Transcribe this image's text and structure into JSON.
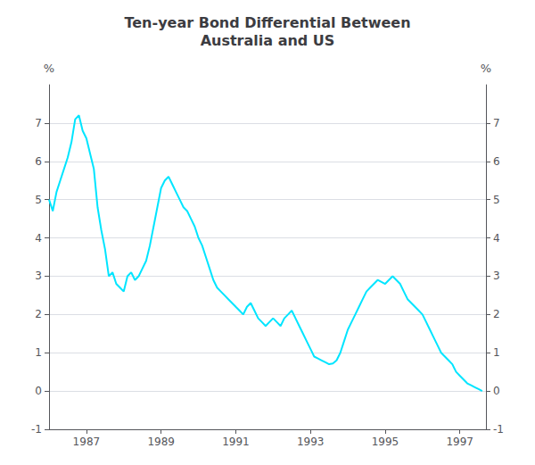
{
  "chart_data": {
    "type": "line",
    "title": "Ten-year Bond Differential Between\nAustralia and US",
    "ylabel": "%",
    "y2label": "%",
    "color": "#00E5FF",
    "grid": true,
    "xlim": [
      1986.0,
      1997.7
    ],
    "xticks": [
      1987,
      1989,
      1991,
      1993,
      1995,
      1997
    ],
    "ylim": [
      -1,
      8
    ],
    "yticks": [
      -1,
      0,
      1,
      2,
      3,
      4,
      5,
      6,
      7
    ],
    "y2lim": [
      -1,
      8
    ],
    "y2ticks": [
      -1,
      0,
      1,
      2,
      3,
      4,
      5,
      6,
      7
    ],
    "x": [
      1986.0,
      1986.1,
      1986.2,
      1986.3,
      1986.4,
      1986.5,
      1986.6,
      1986.7,
      1986.8,
      1986.9,
      1987.0,
      1987.1,
      1987.2,
      1987.3,
      1987.4,
      1987.5,
      1987.6,
      1987.7,
      1987.8,
      1987.9,
      1988.0,
      1988.1,
      1988.2,
      1988.3,
      1988.4,
      1988.5,
      1988.6,
      1988.7,
      1988.8,
      1988.9,
      1989.0,
      1989.1,
      1989.2,
      1989.3,
      1989.4,
      1989.5,
      1989.6,
      1989.7,
      1989.8,
      1989.9,
      1990.0,
      1990.1,
      1990.2,
      1990.3,
      1990.4,
      1990.5,
      1990.6,
      1990.7,
      1990.8,
      1990.9,
      1991.0,
      1991.1,
      1991.2,
      1991.3,
      1991.4,
      1991.5,
      1991.6,
      1991.7,
      1991.8,
      1991.9,
      1992.0,
      1992.1,
      1992.2,
      1992.3,
      1992.4,
      1992.5,
      1992.6,
      1992.7,
      1992.8,
      1992.9,
      1993.0,
      1993.1,
      1993.2,
      1993.3,
      1993.4,
      1993.5,
      1993.6,
      1993.7,
      1993.8,
      1993.9,
      1994.0,
      1994.1,
      1994.2,
      1994.3,
      1994.4,
      1994.5,
      1994.6,
      1994.7,
      1994.8,
      1994.9,
      1995.0,
      1995.1,
      1995.2,
      1995.3,
      1995.4,
      1995.5,
      1995.6,
      1995.7,
      1995.8,
      1995.9,
      1996.0,
      1996.1,
      1996.2,
      1996.3,
      1996.4,
      1996.5,
      1996.6,
      1996.7,
      1996.8,
      1996.9,
      1997.0,
      1997.1,
      1997.2,
      1997.3,
      1997.4,
      1997.5,
      1997.6
    ],
    "values": [
      5.0,
      4.7,
      5.2,
      5.5,
      5.8,
      6.1,
      6.5,
      7.1,
      7.2,
      6.8,
      6.6,
      6.2,
      5.8,
      4.8,
      4.2,
      3.7,
      3.0,
      3.1,
      2.8,
      2.7,
      2.6,
      3.0,
      3.1,
      2.9,
      3.0,
      3.2,
      3.4,
      3.8,
      4.3,
      4.8,
      5.3,
      5.5,
      5.6,
      5.4,
      5.2,
      5.0,
      4.8,
      4.7,
      4.5,
      4.3,
      4.0,
      3.8,
      3.5,
      3.2,
      2.9,
      2.7,
      2.6,
      2.5,
      2.4,
      2.3,
      2.2,
      2.1,
      2.0,
      2.2,
      2.3,
      2.1,
      1.9,
      1.8,
      1.7,
      1.8,
      1.9,
      1.8,
      1.7,
      1.9,
      2.0,
      2.1,
      1.9,
      1.7,
      1.5,
      1.3,
      1.1,
      0.9,
      0.85,
      0.8,
      0.75,
      0.7,
      0.72,
      0.8,
      1.0,
      1.3,
      1.6,
      1.8,
      2.0,
      2.2,
      2.4,
      2.6,
      2.7,
      2.8,
      2.9,
      2.85,
      2.8,
      2.9,
      3.0,
      2.9,
      2.8,
      2.6,
      2.4,
      2.3,
      2.2,
      2.1,
      2.0,
      1.8,
      1.6,
      1.4,
      1.2,
      1.0,
      0.9,
      0.8,
      0.7,
      0.5,
      0.4,
      0.3,
      0.2,
      0.15,
      0.1,
      0.05,
      0.0
    ]
  }
}
